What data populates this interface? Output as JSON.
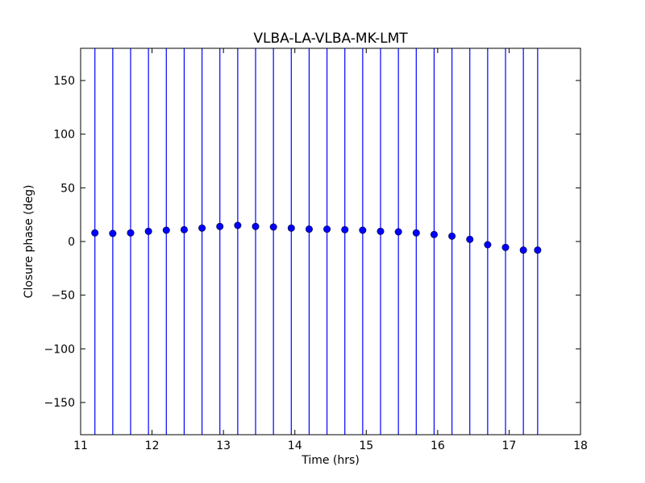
{
  "chart_data": {
    "type": "scatter",
    "title": "VLBA-LA-VLBA-MK-LMT",
    "xlabel": "Time (hrs)",
    "ylabel": "Closure phase (deg)",
    "xlim": [
      11,
      18
    ],
    "ylim": [
      -180,
      180
    ],
    "xticks": [
      11,
      12,
      13,
      14,
      15,
      16,
      17,
      18
    ],
    "yticks": [
      -150,
      -100,
      -50,
      0,
      50,
      100,
      150
    ],
    "xtick_labels": [
      "11",
      "12",
      "13",
      "14",
      "15",
      "16",
      "17",
      "18"
    ],
    "ytick_labels": [
      "−150",
      "−100",
      "−50",
      "0",
      "50",
      "100",
      "150"
    ],
    "grid": false,
    "error_bars": "spans full y range",
    "colors": {
      "marker": "#0000ff",
      "errorbar": "#0000ff",
      "frame": "#000000"
    },
    "points": [
      {
        "x": 11.2,
        "y": 8
      },
      {
        "x": 11.45,
        "y": 7.5
      },
      {
        "x": 11.7,
        "y": 8
      },
      {
        "x": 11.95,
        "y": 9.5
      },
      {
        "x": 12.2,
        "y": 10.5
      },
      {
        "x": 12.45,
        "y": 11
      },
      {
        "x": 12.7,
        "y": 12.5
      },
      {
        "x": 12.95,
        "y": 14
      },
      {
        "x": 13.2,
        "y": 15
      },
      {
        "x": 13.45,
        "y": 14
      },
      {
        "x": 13.7,
        "y": 13.5
      },
      {
        "x": 13.95,
        "y": 12.5
      },
      {
        "x": 14.2,
        "y": 11.5
      },
      {
        "x": 14.45,
        "y": 11.5
      },
      {
        "x": 14.7,
        "y": 11
      },
      {
        "x": 14.95,
        "y": 10.5
      },
      {
        "x": 15.2,
        "y": 9.5
      },
      {
        "x": 15.45,
        "y": 9
      },
      {
        "x": 15.7,
        "y": 8
      },
      {
        "x": 15.95,
        "y": 6.5
      },
      {
        "x": 16.2,
        "y": 5
      },
      {
        "x": 16.45,
        "y": 2
      },
      {
        "x": 16.7,
        "y": -3
      },
      {
        "x": 16.95,
        "y": -5.5
      },
      {
        "x": 17.2,
        "y": -8
      },
      {
        "x": 17.4,
        "y": -8
      }
    ]
  }
}
